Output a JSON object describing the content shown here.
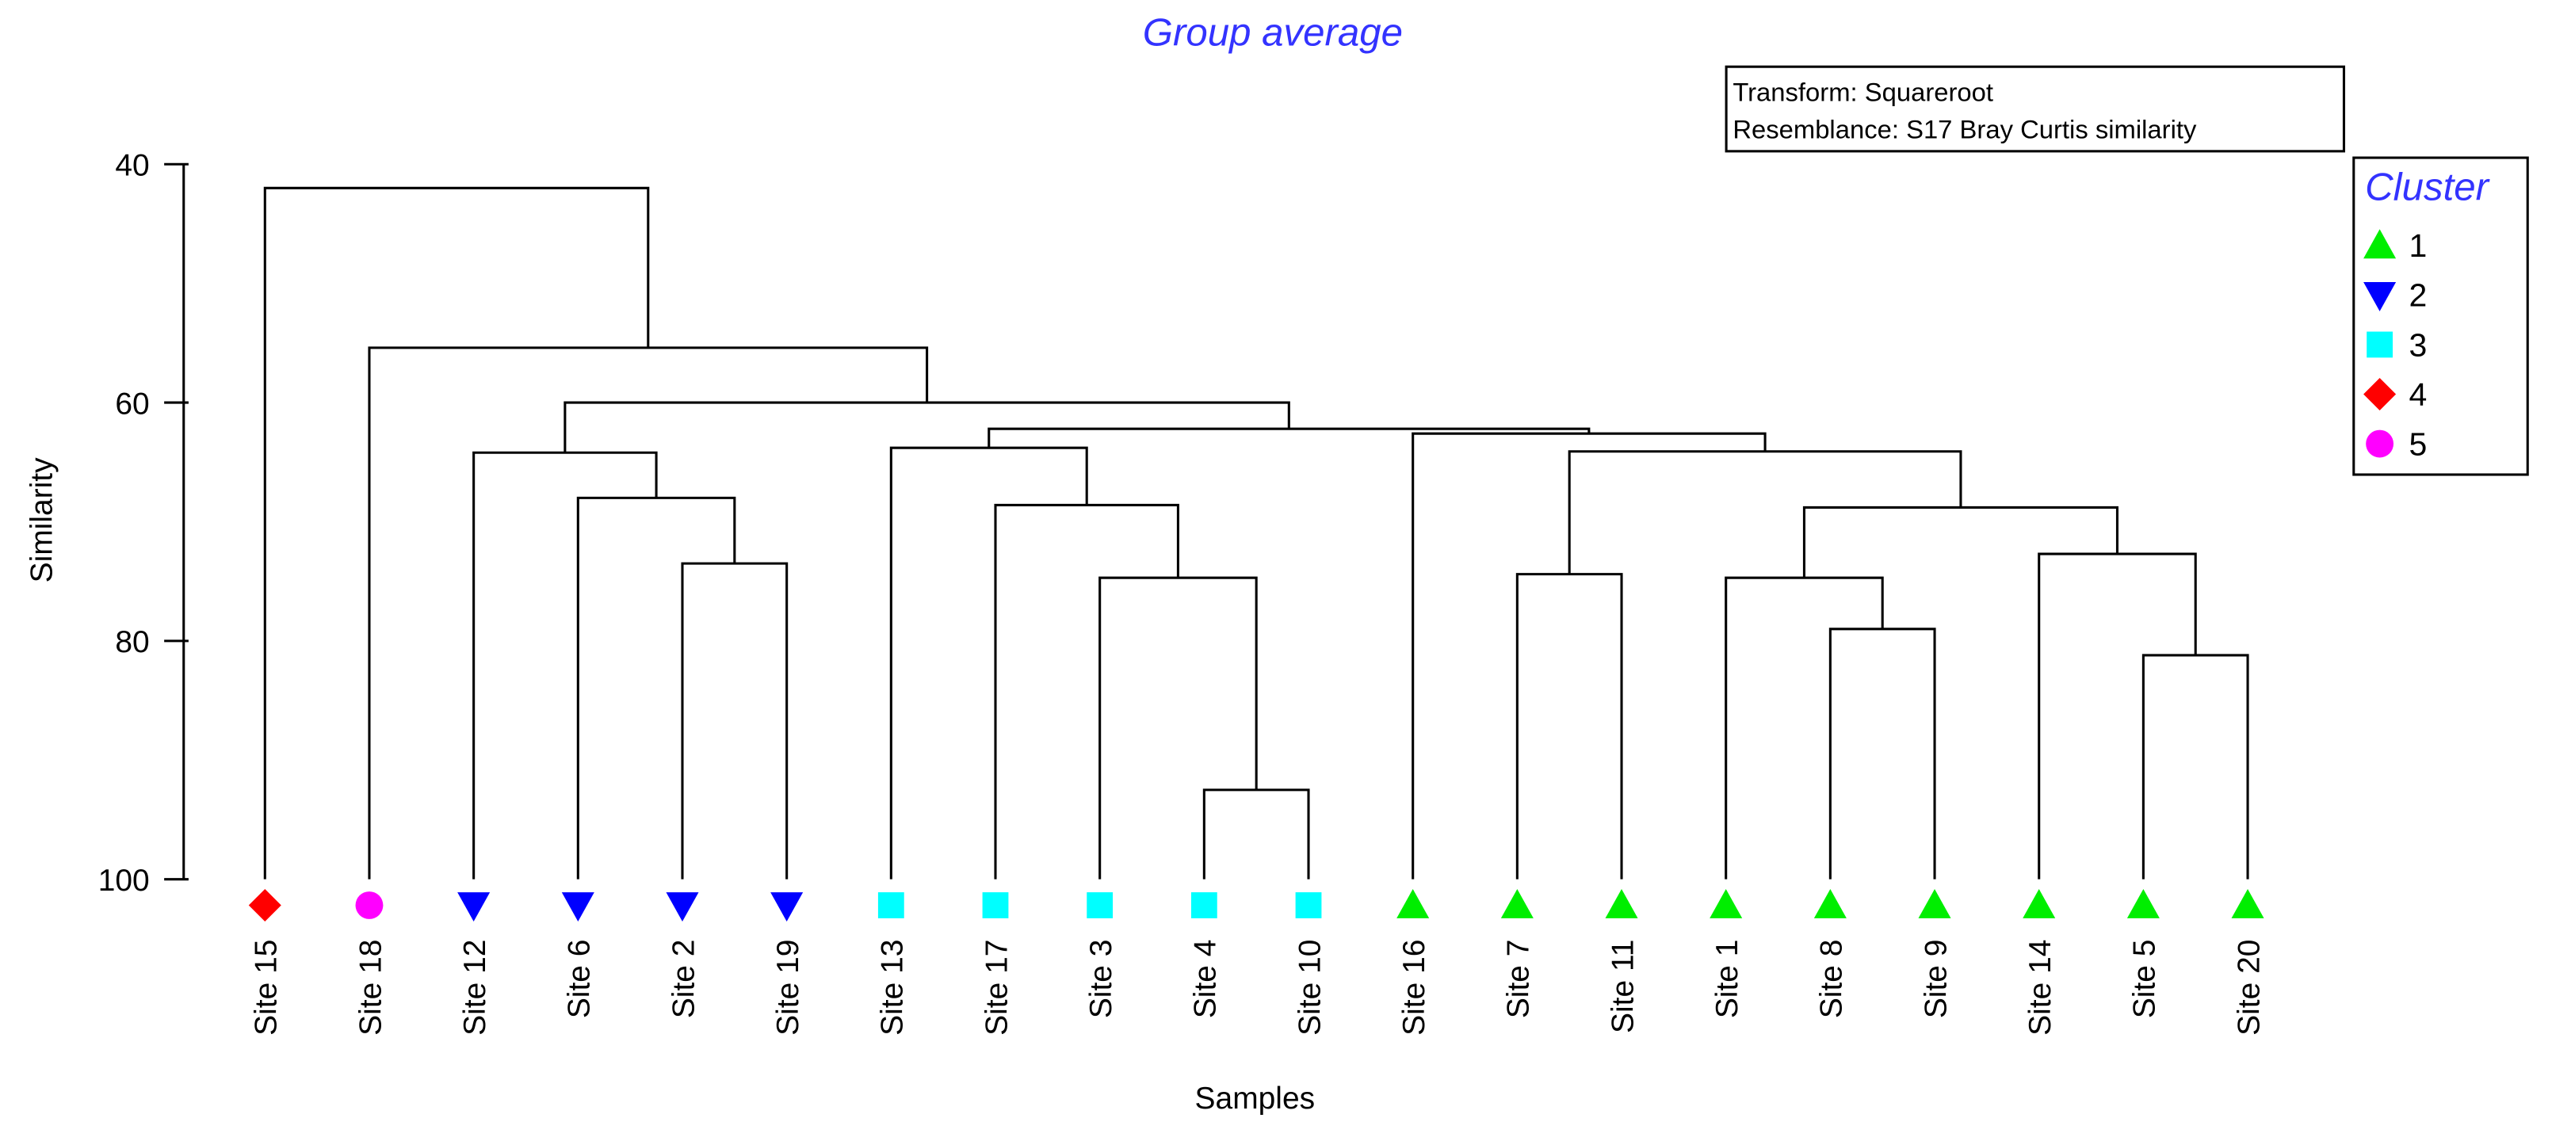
{
  "chart_data": {
    "type": "dendrogram",
    "title": "Group average",
    "info_lines": [
      "Transform: Squareroot",
      "Resemblance: S17 Bray Curtis similarity"
    ],
    "xlabel": "Samples",
    "ylabel": "Similarity",
    "ylim": [
      40,
      100
    ],
    "yticks": [
      40,
      60,
      80,
      100
    ],
    "legend": {
      "title": "Cluster",
      "placement": "right",
      "entries": [
        {
          "label": "1",
          "shape": "triangle-up",
          "color": "#00ee00"
        },
        {
          "label": "2",
          "shape": "triangle-down",
          "color": "#0000ff"
        },
        {
          "label": "3",
          "shape": "square",
          "color": "#00ffff"
        },
        {
          "label": "4",
          "shape": "diamond",
          "color": "#ff0000"
        },
        {
          "label": "5",
          "shape": "circle",
          "color": "#ff00ff"
        }
      ]
    },
    "leaves": [
      {
        "label": "Site 15",
        "cluster": "4"
      },
      {
        "label": "Site 18",
        "cluster": "5"
      },
      {
        "label": "Site 12",
        "cluster": "2"
      },
      {
        "label": "Site 6",
        "cluster": "2"
      },
      {
        "label": "Site 2",
        "cluster": "2"
      },
      {
        "label": "Site 19",
        "cluster": "2"
      },
      {
        "label": "Site 13",
        "cluster": "3"
      },
      {
        "label": "Site 17",
        "cluster": "3"
      },
      {
        "label": "Site 3",
        "cluster": "3"
      },
      {
        "label": "Site 4",
        "cluster": "3"
      },
      {
        "label": "Site 10",
        "cluster": "3"
      },
      {
        "label": "Site 16",
        "cluster": "1"
      },
      {
        "label": "Site 7",
        "cluster": "1"
      },
      {
        "label": "Site 11",
        "cluster": "1"
      },
      {
        "label": "Site 1",
        "cluster": "1"
      },
      {
        "label": "Site 8",
        "cluster": "1"
      },
      {
        "label": "Site 9",
        "cluster": "1"
      },
      {
        "label": "Site 14",
        "cluster": "1"
      },
      {
        "label": "Site 5",
        "cluster": "1"
      },
      {
        "label": "Site 20",
        "cluster": "1"
      }
    ],
    "merges": [
      {
        "left": 9,
        "right": 10,
        "similarity": 92.5
      },
      {
        "left": 8,
        "right": 20,
        "similarity": 74.7
      },
      {
        "left": 7,
        "right": 21,
        "similarity": 68.6
      },
      {
        "left": 6,
        "right": 22,
        "similarity": 63.8
      },
      {
        "left": 4,
        "right": 5,
        "similarity": 73.5
      },
      {
        "left": 3,
        "right": 24,
        "similarity": 68.0
      },
      {
        "left": 2,
        "right": 25,
        "similarity": 64.2
      },
      {
        "left": 12,
        "right": 13,
        "similarity": 74.4
      },
      {
        "left": 15,
        "right": 16,
        "similarity": 79.0
      },
      {
        "left": 14,
        "right": 28,
        "similarity": 74.7
      },
      {
        "left": 18,
        "right": 19,
        "similarity": 81.2
      },
      {
        "left": 17,
        "right": 30,
        "similarity": 72.7
      },
      {
        "left": 29,
        "right": 31,
        "similarity": 68.8
      },
      {
        "left": 27,
        "right": 32,
        "similarity": 64.1
      },
      {
        "left": 11,
        "right": 33,
        "similarity": 62.6
      },
      {
        "left": 23,
        "right": 34,
        "similarity": 62.2
      },
      {
        "left": 26,
        "right": 35,
        "similarity": 60.0
      },
      {
        "left": 1,
        "right": 36,
        "similarity": 55.4
      },
      {
        "left": 0,
        "right": 37,
        "similarity": 42.0
      }
    ]
  }
}
